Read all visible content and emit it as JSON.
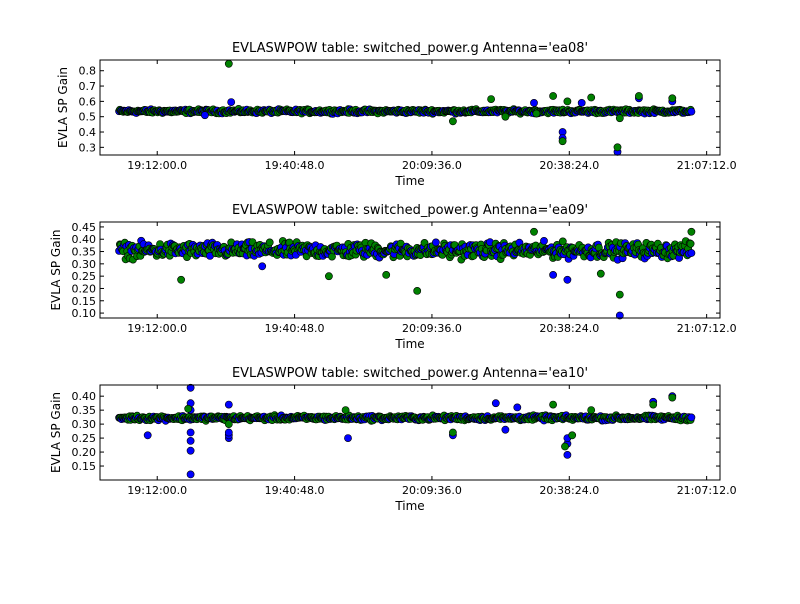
{
  "chart_data": [
    {
      "type": "scatter",
      "title": "EVLASWPOW table: switched_power.g      Antenna='ea08'",
      "xlabel": "Time",
      "ylabel": "EVLA SP Gain",
      "x_ticks": [
        "19:12:00.0",
        "19:40:48.0",
        "20:09:36.0",
        "20:38:24.0",
        "21:07:12.0"
      ],
      "y_ticks": [
        "0.3",
        "0.4",
        "0.5",
        "0.6",
        "0.7",
        "0.8"
      ],
      "xlim": [
        "19:00:00",
        "21:10:00"
      ],
      "ylim": [
        0.25,
        0.87
      ],
      "band_center": 0.535,
      "band_halfwidth": 0.018,
      "band_x_range": [
        "19:04:00",
        "21:04:00"
      ],
      "grid": false,
      "series": [
        {
          "color": "#0000ff",
          "points": [
            [
              "19:22:00",
              0.51
            ],
            [
              "19:27:30",
              0.595
            ],
            [
              "20:31:00",
              0.59
            ],
            [
              "20:37:00",
              0.4
            ],
            [
              "20:37:00",
              0.36
            ],
            [
              "20:41:00",
              0.59
            ],
            [
              "20:48:30",
              0.27
            ],
            [
              "20:53:00",
              0.62
            ],
            [
              "21:00:00",
              0.6
            ]
          ]
        },
        {
          "color": "#008000",
          "points": [
            [
              "19:27:00",
              0.845
            ],
            [
              "20:14:00",
              0.47
            ],
            [
              "20:22:00",
              0.615
            ],
            [
              "20:25:00",
              0.5
            ],
            [
              "20:31:30",
              0.52
            ],
            [
              "20:35:00",
              0.635
            ],
            [
              "20:37:00",
              0.34
            ],
            [
              "20:38:00",
              0.6
            ],
            [
              "20:43:00",
              0.625
            ],
            [
              "20:48:30",
              0.3
            ],
            [
              "20:49:00",
              0.49
            ],
            [
              "20:53:00",
              0.635
            ],
            [
              "21:00:00",
              0.62
            ]
          ]
        }
      ]
    },
    {
      "type": "scatter",
      "title": "EVLASWPOW table: switched_power.g      Antenna='ea09'",
      "xlabel": "Time",
      "ylabel": "EVLA SP Gain",
      "x_ticks": [
        "19:12:00.0",
        "19:40:48.0",
        "20:09:36.0",
        "20:38:24.0",
        "21:07:12.0"
      ],
      "y_ticks": [
        "0.10",
        "0.15",
        "0.20",
        "0.25",
        "0.30",
        "0.35",
        "0.40",
        "0.45"
      ],
      "xlim": [
        "19:00:00",
        "21:10:00"
      ],
      "ylim": [
        0.08,
        0.47
      ],
      "band_center": 0.355,
      "band_halfwidth": 0.045,
      "band_x_range": [
        "19:04:00",
        "21:04:00"
      ],
      "grid": false,
      "series": [
        {
          "color": "#0000ff",
          "points": [
            [
              "19:34:00",
              0.29
            ],
            [
              "20:35:00",
              0.255
            ],
            [
              "20:38:00",
              0.235
            ],
            [
              "20:49:00",
              0.09
            ]
          ]
        },
        {
          "color": "#008000",
          "points": [
            [
              "19:17:00",
              0.235
            ],
            [
              "19:48:00",
              0.25
            ],
            [
              "20:00:00",
              0.255
            ],
            [
              "20:06:30",
              0.19
            ],
            [
              "20:31:00",
              0.43
            ],
            [
              "20:45:00",
              0.26
            ],
            [
              "20:49:00",
              0.175
            ],
            [
              "21:04:00",
              0.43
            ]
          ]
        }
      ]
    },
    {
      "type": "scatter",
      "title": "EVLASWPOW table: switched_power.g      Antenna='ea10'",
      "xlabel": "Time",
      "ylabel": "EVLA SP Gain",
      "x_ticks": [
        "19:12:00.0",
        "19:40:48.0",
        "20:09:36.0",
        "20:38:24.0",
        "21:07:12.0"
      ],
      "y_ticks": [
        "0.15",
        "0.20",
        "0.25",
        "0.30",
        "0.35",
        "0.40"
      ],
      "xlim": [
        "19:00:00",
        "21:10:00"
      ],
      "ylim": [
        0.1,
        0.44
      ],
      "band_center": 0.322,
      "band_halfwidth": 0.012,
      "band_x_range": [
        "19:04:00",
        "21:04:00"
      ],
      "grid": false,
      "series": [
        {
          "color": "#0000ff",
          "points": [
            [
              "19:10:00",
              0.26
            ],
            [
              "19:19:00",
              0.43
            ],
            [
              "19:19:00",
              0.375
            ],
            [
              "19:19:00",
              0.35
            ],
            [
              "19:19:00",
              0.27
            ],
            [
              "19:19:00",
              0.24
            ],
            [
              "19:19:00",
              0.205
            ],
            [
              "19:19:00",
              0.12
            ],
            [
              "19:27:00",
              0.37
            ],
            [
              "19:27:00",
              0.25
            ],
            [
              "19:27:00",
              0.26
            ],
            [
              "19:27:00",
              0.27
            ],
            [
              "19:52:00",
              0.25
            ],
            [
              "20:14:00",
              0.26
            ],
            [
              "20:23:00",
              0.375
            ],
            [
              "20:25:00",
              0.28
            ],
            [
              "20:27:30",
              0.36
            ],
            [
              "20:38:00",
              0.19
            ],
            [
              "20:38:00",
              0.23
            ],
            [
              "20:38:00",
              0.25
            ],
            [
              "20:56:00",
              0.38
            ],
            [
              "21:00:00",
              0.4
            ]
          ]
        },
        {
          "color": "#008000",
          "points": [
            [
              "19:18:30",
              0.355
            ],
            [
              "19:27:00",
              0.3
            ],
            [
              "19:51:30",
              0.35
            ],
            [
              "20:14:00",
              0.27
            ],
            [
              "20:35:00",
              0.37
            ],
            [
              "20:37:30",
              0.22
            ],
            [
              "20:39:00",
              0.26
            ],
            [
              "20:43:00",
              0.35
            ],
            [
              "20:56:00",
              0.37
            ],
            [
              "21:00:00",
              0.395
            ]
          ]
        }
      ]
    }
  ]
}
